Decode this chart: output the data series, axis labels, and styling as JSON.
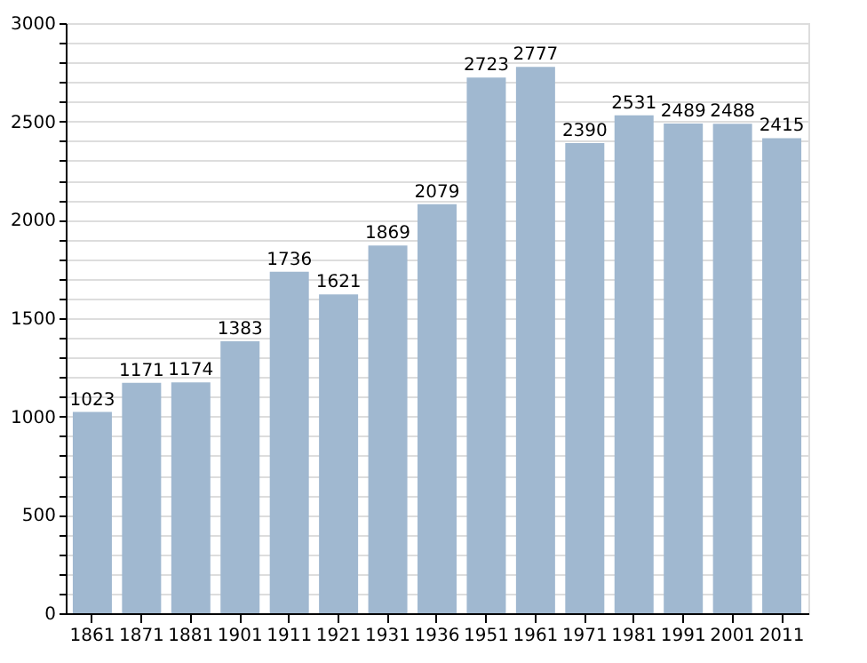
{
  "chart_data": {
    "type": "bar",
    "categories": [
      "1861",
      "1871",
      "1881",
      "1901",
      "1911",
      "1921",
      "1931",
      "1936",
      "1951",
      "1961",
      "1971",
      "1981",
      "1991",
      "2001",
      "2011"
    ],
    "values": [
      1023,
      1171,
      1174,
      1383,
      1736,
      1621,
      1869,
      2079,
      2723,
      2777,
      2390,
      2531,
      2489,
      2488,
      2415
    ],
    "color": "#a0b8d0",
    "data_labels": true,
    "ylim": [
      0,
      3000
    ],
    "yticks": [
      0,
      {
        "value": 100,
        "label": null
      },
      {
        "value": 200,
        "label": null
      },
      {
        "value": 300,
        "label": null
      },
      {
        "value": 400,
        "label": null
      },
      500,
      {
        "value": 600,
        "label": null
      },
      {
        "value": 700,
        "label": null
      },
      {
        "value": 800,
        "label": null
      },
      {
        "value": 900,
        "label": null
      },
      1000,
      {
        "value": 1100,
        "label": null
      },
      {
        "value": 1200,
        "label": null
      },
      {
        "value": 1300,
        "label": null
      },
      {
        "value": 1400,
        "label": null
      },
      1500,
      {
        "value": 1600,
        "label": null
      },
      {
        "value": 1700,
        "label": null
      },
      {
        "value": 1800,
        "label": null
      },
      {
        "value": 1900,
        "label": null
      },
      2000,
      {
        "value": 2100,
        "label": null
      },
      {
        "value": 2200,
        "label": null
      },
      {
        "value": 2300,
        "label": null
      },
      {
        "value": 2400,
        "label": null
      },
      2500,
      {
        "value": 2600,
        "label": null
      },
      {
        "value": 2700,
        "label": null
      },
      {
        "value": 2800,
        "label": null
      },
      {
        "value": 2900,
        "label": null
      },
      3000
    ],
    "grid": "y"
  }
}
